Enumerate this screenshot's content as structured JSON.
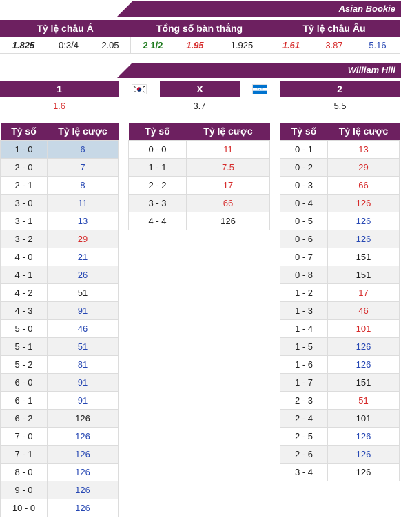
{
  "asian": {
    "bookie": "Asian Bookie",
    "headers": [
      "Tỷ lệ châu Á",
      "Tổng số bàn thắng",
      "Tỷ lệ châu Âu"
    ],
    "values": [
      "1.825",
      "0:3/4",
      "2.05",
      "2 1/2",
      "1.95",
      "1.925",
      "1.61",
      "3.87",
      "5.16"
    ]
  },
  "william": {
    "bookie": "William Hill",
    "headers": [
      "1",
      "X",
      "2"
    ],
    "values": [
      "1.6",
      "3.7",
      "5.5"
    ]
  },
  "flags": [
    "korea-flag-icon",
    "honduras-flag-icon"
  ],
  "score_headers": [
    "Tỷ số",
    "Tỷ lệ cược"
  ],
  "home_wins": [
    [
      "1 - 0",
      "6"
    ],
    [
      "2 - 0",
      "7"
    ],
    [
      "2 - 1",
      "8"
    ],
    [
      "3 - 0",
      "11"
    ],
    [
      "3 - 1",
      "13"
    ],
    [
      "3 - 2",
      "29"
    ],
    [
      "4 - 0",
      "21"
    ],
    [
      "4 - 1",
      "26"
    ],
    [
      "4 - 2",
      "51"
    ],
    [
      "4 - 3",
      "91"
    ],
    [
      "5 - 0",
      "46"
    ],
    [
      "5 - 1",
      "51"
    ],
    [
      "5 - 2",
      "81"
    ],
    [
      "6 - 0",
      "91"
    ],
    [
      "6 - 1",
      "91"
    ],
    [
      "6 - 2",
      "126"
    ],
    [
      "7 - 0",
      "126"
    ],
    [
      "7 - 1",
      "126"
    ],
    [
      "8 - 0",
      "126"
    ],
    [
      "9 - 0",
      "126"
    ],
    [
      "10 - 0",
      "126"
    ]
  ],
  "draws": [
    [
      "0 - 0",
      "11"
    ],
    [
      "1 - 1",
      "7.5"
    ],
    [
      "2 - 2",
      "17"
    ],
    [
      "3 - 3",
      "66"
    ],
    [
      "4 - 4",
      "126"
    ]
  ],
  "away_wins": [
    [
      "0 - 1",
      "13"
    ],
    [
      "0 - 2",
      "29"
    ],
    [
      "0 - 3",
      "66"
    ],
    [
      "0 - 4",
      "126"
    ],
    [
      "0 - 5",
      "126"
    ],
    [
      "0 - 6",
      "126"
    ],
    [
      "0 - 7",
      "151"
    ],
    [
      "0 - 8",
      "151"
    ],
    [
      "1 - 2",
      "17"
    ],
    [
      "1 - 3",
      "46"
    ],
    [
      "1 - 4",
      "101"
    ],
    [
      "1 - 5",
      "126"
    ],
    [
      "1 - 6",
      "126"
    ],
    [
      "1 - 7",
      "151"
    ],
    [
      "2 - 3",
      "51"
    ],
    [
      "2 - 4",
      "101"
    ],
    [
      "2 - 5",
      "126"
    ],
    [
      "2 - 6",
      "126"
    ],
    [
      "3 - 4",
      "126"
    ]
  ],
  "colors": {
    "header": "#6d2060",
    "home": [
      "blue",
      "blue",
      "blue",
      "blue",
      "blue",
      "red",
      "blue",
      "blue",
      "dark",
      "blue",
      "blue",
      "blue",
      "blue",
      "blue",
      "blue",
      "dark",
      "blue",
      "blue",
      "blue",
      "blue",
      "blue"
    ],
    "draws": [
      "red",
      "red",
      "red",
      "red",
      "dark"
    ],
    "away": [
      "red",
      "red",
      "red",
      "red",
      "blue",
      "blue",
      "dark",
      "dark",
      "red",
      "red",
      "red",
      "blue",
      "blue",
      "dark",
      "red",
      "dark",
      "blue",
      "blue",
      "dark"
    ]
  }
}
